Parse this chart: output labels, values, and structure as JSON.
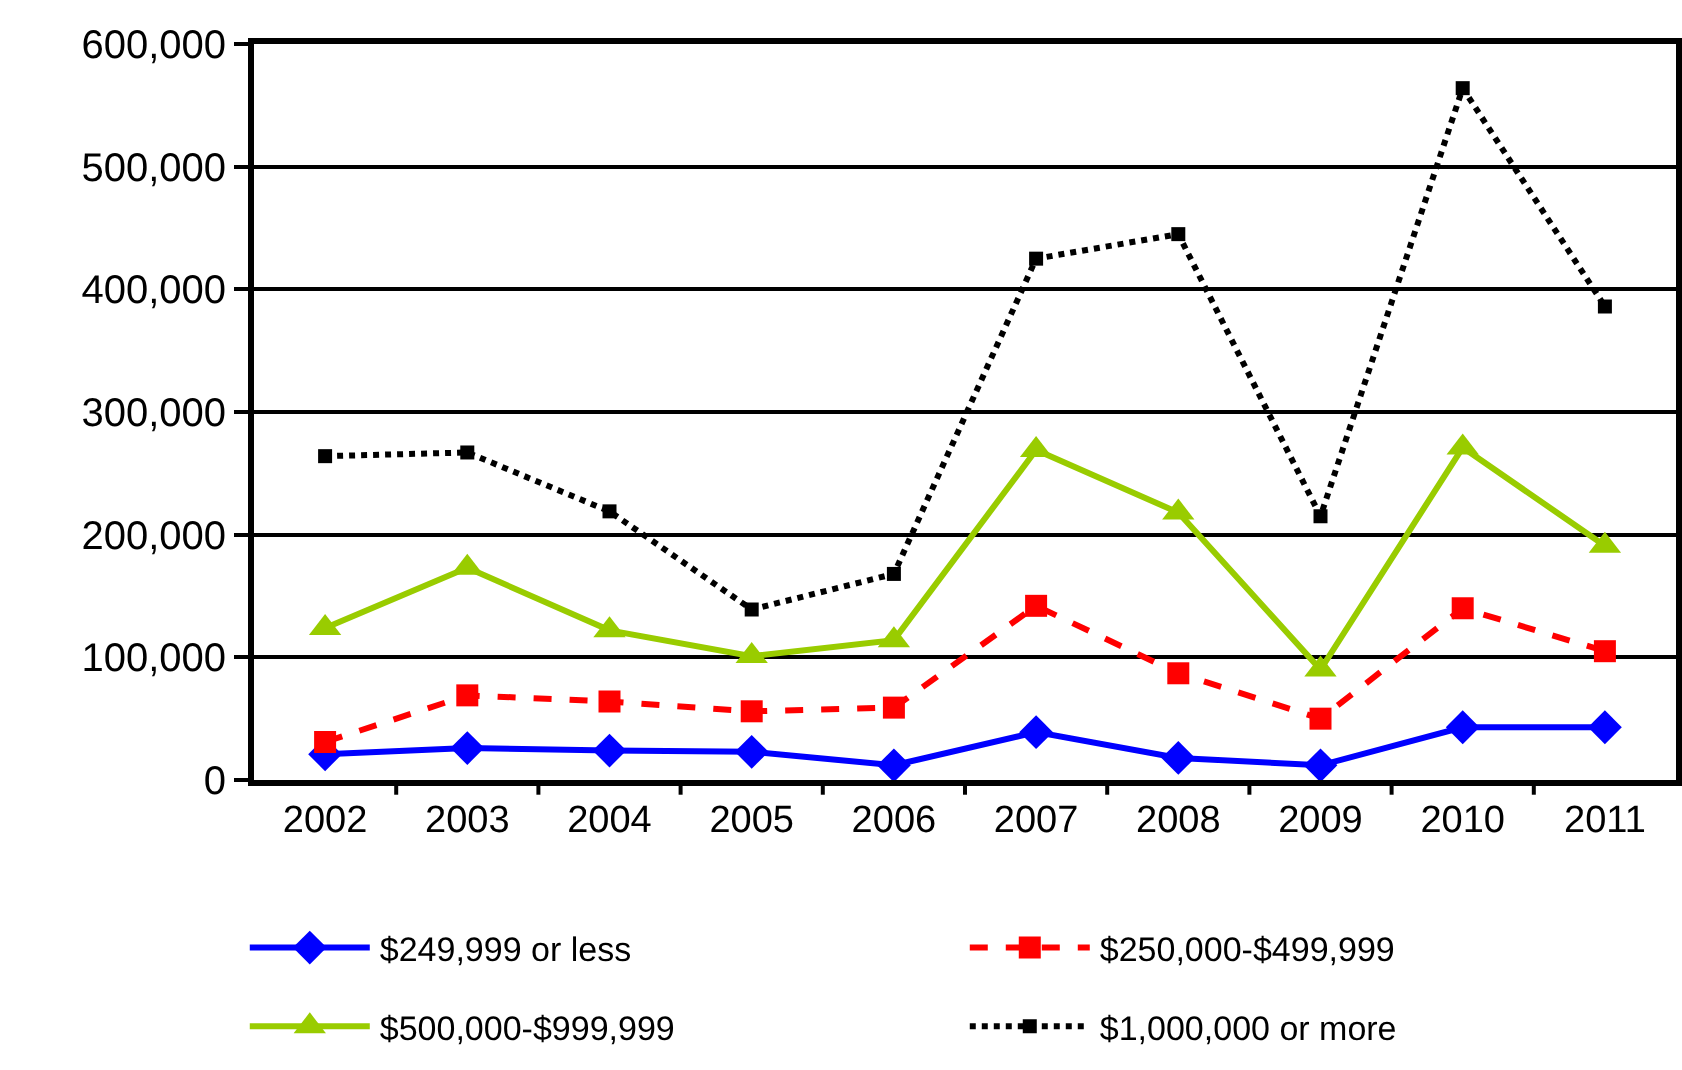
{
  "chart_data": {
    "type": "line",
    "categories": [
      "2002",
      "2003",
      "2004",
      "2005",
      "2006",
      "2007",
      "2008",
      "2009",
      "2010",
      "2011"
    ],
    "series": [
      {
        "name": "$249,999 or less",
        "color": "#0000ff",
        "marker": "diamond",
        "line_style": "solid",
        "values": [
          21000,
          26000,
          24000,
          23000,
          12000,
          39000,
          18000,
          12000,
          43000,
          43000
        ]
      },
      {
        "name": "$250,000-$499,999",
        "color": "#ff0000",
        "marker": "square",
        "line_style": "dashed",
        "values": [
          31000,
          69000,
          64000,
          56000,
          59000,
          142000,
          87000,
          50000,
          140000,
          105000
        ]
      },
      {
        "name": "$500,000-$999,999",
        "color": "#99cc00",
        "marker": "triangle",
        "line_style": "solid",
        "values": [
          124000,
          173000,
          122000,
          101000,
          114000,
          269000,
          218000,
          90000,
          271000,
          191000
        ]
      },
      {
        "name": "$1,000,000 or more",
        "color": "#000000",
        "marker": "square",
        "line_style": "dotted",
        "values": [
          264000,
          267000,
          219000,
          139000,
          168000,
          425000,
          445000,
          215000,
          564000,
          386000
        ]
      }
    ],
    "ylim": [
      0,
      600000
    ],
    "yticks": [
      {
        "value": 0,
        "label": "0"
      },
      {
        "value": 100000,
        "label": "100,000"
      },
      {
        "value": 200000,
        "label": "200,000"
      },
      {
        "value": 300000,
        "label": "300,000"
      },
      {
        "value": 400000,
        "label": "400,000"
      },
      {
        "value": 500000,
        "label": "500,000"
      },
      {
        "value": 600000,
        "label": "600,000"
      }
    ],
    "grid": "y",
    "legend": "bottom"
  }
}
